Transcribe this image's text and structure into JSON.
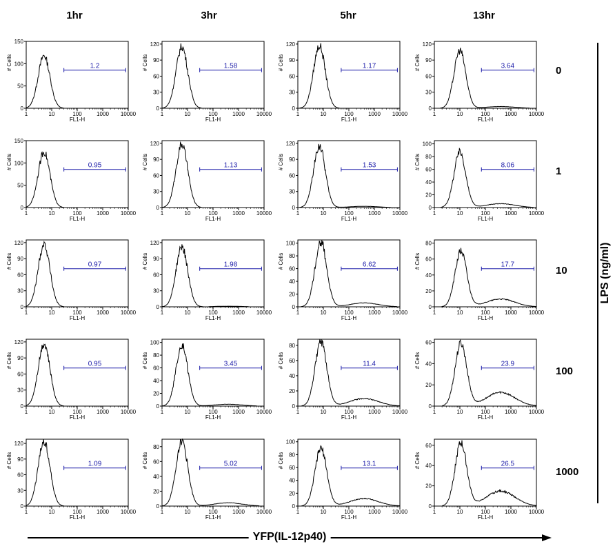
{
  "columns": [
    "1hr",
    "3hr",
    "5hr",
    "13hr"
  ],
  "rows": [
    "0",
    "1",
    "10",
    "100",
    "1000"
  ],
  "row_axis_label": "LPS (ng/ml)",
  "x_axis_label": "YFP(IL-12p40)",
  "panel_xlabel": "FL1-H",
  "panel_ylabel": "# Cells",
  "colors": {
    "histogram": "#000000",
    "gate": "#1a1aa8",
    "axis": "#000000"
  },
  "chart_data": {
    "type": "histogram-grid",
    "xscale": "log",
    "xlim": [
      1,
      10000
    ],
    "x_ticks": [
      "1",
      "10",
      "100",
      "1000",
      "10000"
    ],
    "grid": false,
    "panels": [
      {
        "time": "1hr",
        "lps": "0",
        "gate_value": "1.2",
        "yticks": [
          0,
          50,
          100,
          150
        ],
        "ymax": 150,
        "peak": 118,
        "mode": 5,
        "shoulder": 0
      },
      {
        "time": "3hr",
        "lps": "0",
        "gate_value": "1.58",
        "yticks": [
          0,
          30,
          60,
          90,
          120
        ],
        "ymax": 125,
        "peak": 115,
        "mode": 6,
        "shoulder": 0
      },
      {
        "time": "5hr",
        "lps": "0",
        "gate_value": "1.17",
        "yticks": [
          0,
          30,
          60,
          90,
          120
        ],
        "ymax": 125,
        "peak": 117,
        "mode": 7,
        "shoulder": 0
      },
      {
        "time": "13hr",
        "lps": "0",
        "gate_value": "3.64",
        "yticks": [
          0,
          30,
          60,
          90,
          120
        ],
        "ymax": 125,
        "peak": 108,
        "mode": 10,
        "shoulder": 0.03
      },
      {
        "time": "1hr",
        "lps": "1",
        "gate_value": "0.95",
        "yticks": [
          0,
          50,
          100,
          150
        ],
        "ymax": 150,
        "peak": 125,
        "mode": 5,
        "shoulder": 0
      },
      {
        "time": "3hr",
        "lps": "1",
        "gate_value": "1.13",
        "yticks": [
          0,
          30,
          60,
          90,
          120
        ],
        "ymax": 125,
        "peak": 118,
        "mode": 6,
        "shoulder": 0
      },
      {
        "time": "5hr",
        "lps": "1",
        "gate_value": "1.53",
        "yticks": [
          0,
          30,
          60,
          90,
          120
        ],
        "ymax": 125,
        "peak": 115,
        "mode": 7,
        "shoulder": 0.02
      },
      {
        "time": "13hr",
        "lps": "1",
        "gate_value": "8.06",
        "yticks": [
          0,
          20,
          40,
          60,
          80,
          100
        ],
        "ymax": 105,
        "peak": 87,
        "mode": 10,
        "shoulder": 0.07
      },
      {
        "time": "1hr",
        "lps": "10",
        "gate_value": "0.97",
        "yticks": [
          0,
          30,
          60,
          90,
          120
        ],
        "ymax": 125,
        "peak": 117,
        "mode": 5,
        "shoulder": 0
      },
      {
        "time": "3hr",
        "lps": "10",
        "gate_value": "1.98",
        "yticks": [
          0,
          30,
          60,
          90,
          120
        ],
        "ymax": 125,
        "peak": 112,
        "mode": 6,
        "shoulder": 0.01
      },
      {
        "time": "5hr",
        "lps": "10",
        "gate_value": "6.62",
        "yticks": [
          0,
          20,
          40,
          60,
          80,
          100
        ],
        "ymax": 105,
        "peak": 102,
        "mode": 8,
        "shoulder": 0.06
      },
      {
        "time": "13hr",
        "lps": "10",
        "gate_value": "17.7",
        "yticks": [
          0,
          20,
          40,
          60,
          80
        ],
        "ymax": 84,
        "peak": 70,
        "mode": 11,
        "shoulder": 0.14
      },
      {
        "time": "1hr",
        "lps": "100",
        "gate_value": "0.95",
        "yticks": [
          0,
          30,
          60,
          90,
          120
        ],
        "ymax": 125,
        "peak": 117,
        "mode": 5,
        "shoulder": 0
      },
      {
        "time": "3hr",
        "lps": "100",
        "gate_value": "3.45",
        "yticks": [
          0,
          20,
          40,
          60,
          80,
          100
        ],
        "ymax": 105,
        "peak": 96,
        "mode": 6,
        "shoulder": 0.03
      },
      {
        "time": "5hr",
        "lps": "100",
        "gate_value": "11.4",
        "yticks": [
          0,
          20,
          40,
          60,
          80
        ],
        "ymax": 88,
        "peak": 84,
        "mode": 8,
        "shoulder": 0.12
      },
      {
        "time": "13hr",
        "lps": "100",
        "gate_value": "23.9",
        "yticks": [
          0,
          20,
          40,
          60
        ],
        "ymax": 63,
        "peak": 59,
        "mode": 11,
        "shoulder": 0.22
      },
      {
        "time": "1hr",
        "lps": "1000",
        "gate_value": "1.09",
        "yticks": [
          0,
          30,
          60,
          90,
          120
        ],
        "ymax": 128,
        "peak": 125,
        "mode": 5,
        "shoulder": 0
      },
      {
        "time": "3hr",
        "lps": "1000",
        "gate_value": "5.02",
        "yticks": [
          0,
          20,
          40,
          60,
          80
        ],
        "ymax": 90,
        "peak": 88,
        "mode": 6,
        "shoulder": 0.05
      },
      {
        "time": "5hr",
        "lps": "1000",
        "gate_value": "13.1",
        "yticks": [
          0,
          20,
          40,
          60,
          80,
          100
        ],
        "ymax": 104,
        "peak": 90,
        "mode": 8,
        "shoulder": 0.13
      },
      {
        "time": "13hr",
        "lps": "1000",
        "gate_value": "26.5",
        "yticks": [
          0,
          20,
          40,
          60
        ],
        "ymax": 66,
        "peak": 62,
        "mode": 11,
        "shoulder": 0.24
      }
    ]
  }
}
